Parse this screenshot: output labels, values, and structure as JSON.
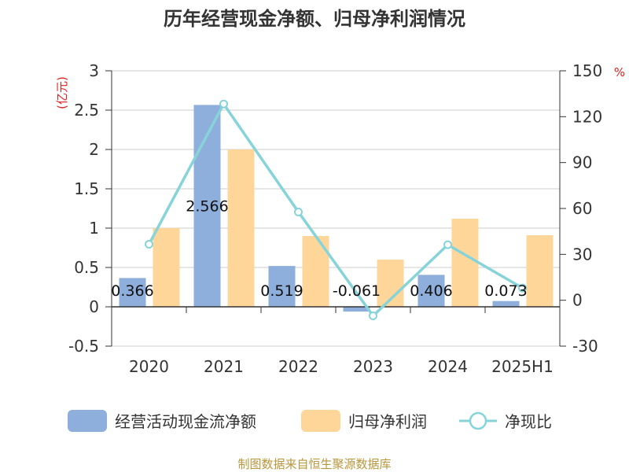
{
  "chart_data": {
    "type": "bar",
    "title": "历年经营现金净额、归母净利润情况",
    "categories": [
      "2020",
      "2021",
      "2022",
      "2023",
      "2024",
      "2025H1"
    ],
    "left_axis": {
      "unit_label": "(亿元)",
      "ylim": [
        -0.5,
        3
      ],
      "ticks": [
        "3",
        "2.5",
        "2",
        "1.5",
        "1",
        "0.5",
        "0",
        "-0.5"
      ]
    },
    "right_axis": {
      "unit_label": "%",
      "ylim": [
        -30,
        150
      ],
      "ticks": [
        "150",
        "120",
        "90",
        "60",
        "30",
        "0",
        "-30"
      ]
    },
    "grid": true,
    "legend_position": "bottom",
    "series": [
      {
        "name": "经营活动现金流净额",
        "type": "bar",
        "axis": "left",
        "color": "#8EAEDC",
        "values": [
          0.366,
          2.566,
          0.519,
          -0.061,
          0.406,
          0.073
        ],
        "labels": [
          "0.366",
          "2.566",
          "0.519",
          "-0.061",
          "0.406",
          "0.073"
        ]
      },
      {
        "name": "归母净利润",
        "type": "bar",
        "axis": "left",
        "color": "#FFD699",
        "values": [
          1.0,
          2.0,
          0.9,
          0.6,
          1.12,
          0.91
        ]
      },
      {
        "name": "净现比",
        "type": "line",
        "axis": "right",
        "color": "#86D4D9",
        "marker": "hollow-circle",
        "values": [
          36.6,
          128.3,
          57.7,
          -10.2,
          36.3,
          8.0
        ]
      }
    ]
  },
  "source_note": "制图数据来自恒生聚源数据库"
}
